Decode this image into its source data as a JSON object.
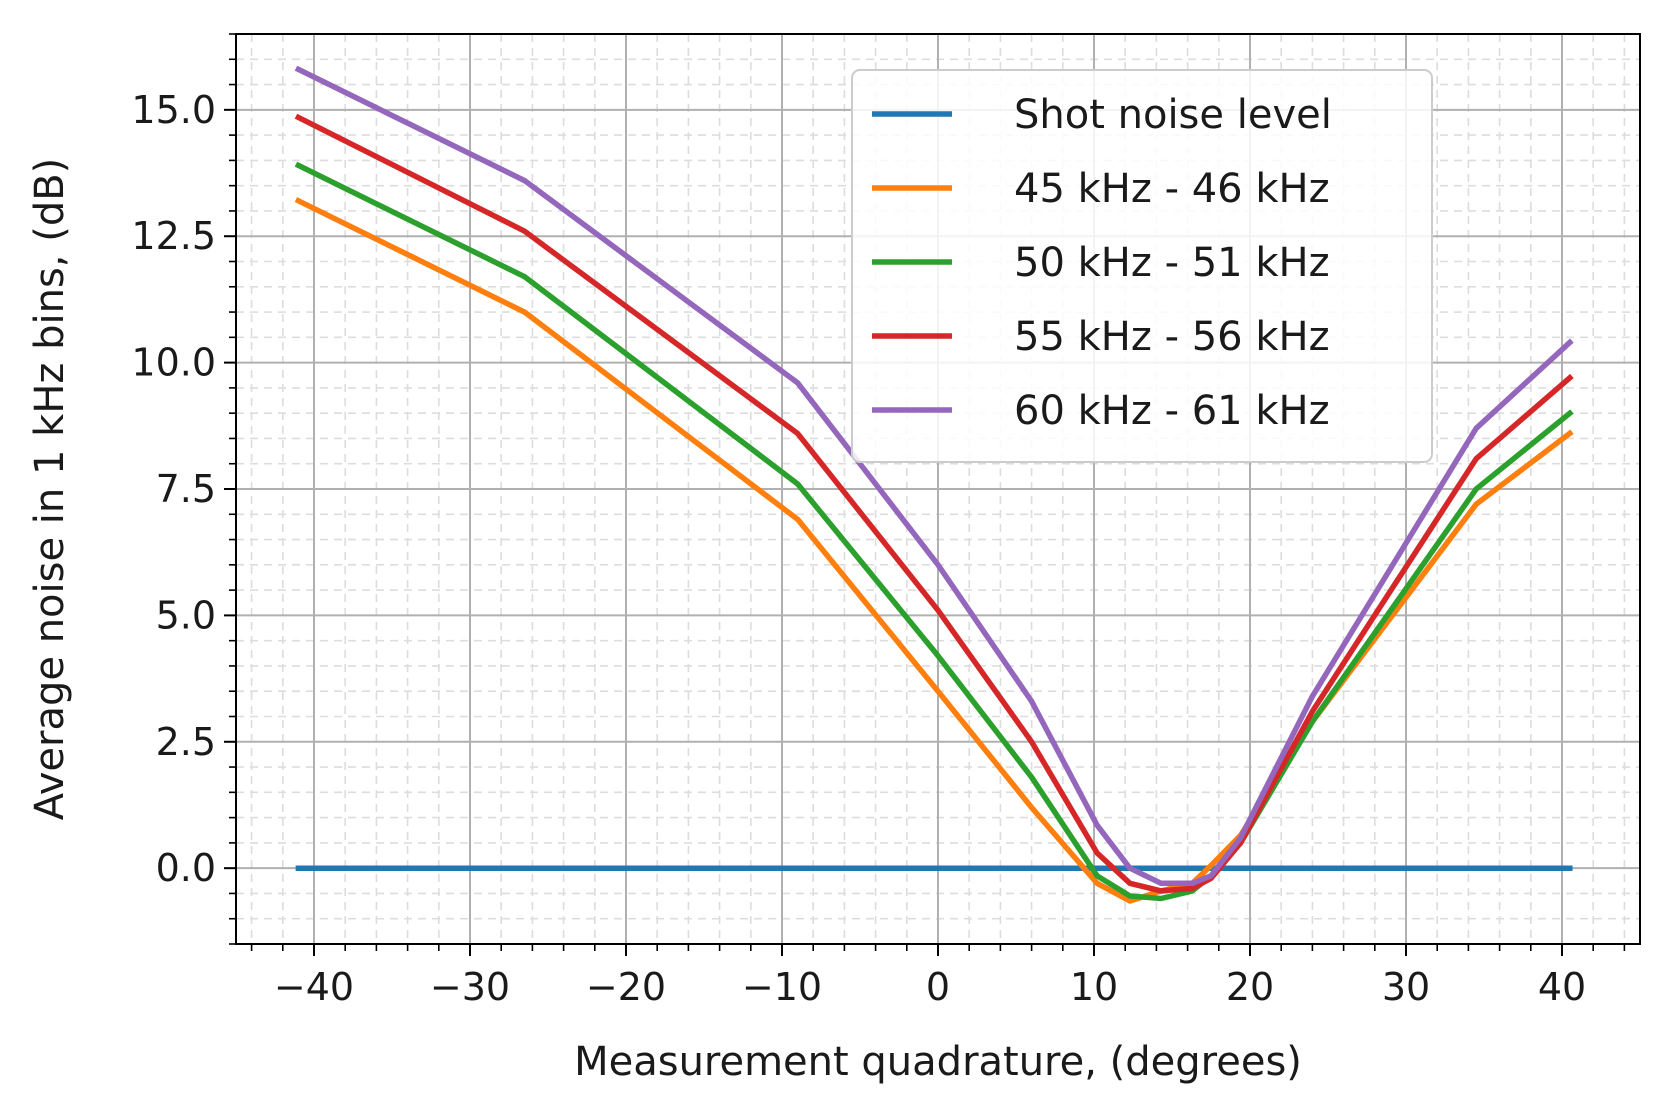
{
  "chart_data": {
    "type": "line",
    "xlabel": "Measurement quadrature, (degrees)",
    "ylabel": "Average noise in 1 kHz bins, (dB)",
    "xlim": [
      -45,
      45
    ],
    "ylim": [
      -1.5,
      16.5
    ],
    "x_ticks": [
      -40,
      -30,
      -20,
      -10,
      0,
      10,
      20,
      30,
      40
    ],
    "x_tick_labels": [
      "−40",
      "−30",
      "−20",
      "−10",
      "0",
      "10",
      "20",
      "30",
      "40"
    ],
    "y_ticks": [
      0,
      2.5,
      5,
      7.5,
      10,
      12.5,
      15
    ],
    "y_tick_labels": [
      "0.0",
      "2.5",
      "5.0",
      "7.5",
      "10.0",
      "12.5",
      "15.0"
    ],
    "x_minor_step": 2,
    "y_minor_step": 0.5,
    "grid": true,
    "legend_position": "top-right",
    "series": [
      {
        "name": "Shot noise level",
        "color": "#1f77b4",
        "x": [
          -41,
          40.5
        ],
        "y": [
          0,
          0
        ]
      },
      {
        "name": "45 kHz - 46 kHz",
        "color": "#ff7f0e",
        "x": [
          -41,
          -26.5,
          -9,
          0,
          6,
          10.2,
          12.3,
          14.3,
          16.3,
          17.5,
          19.4,
          24,
          34.5,
          40.5
        ],
        "y": [
          13.2,
          11.0,
          6.9,
          3.5,
          1.2,
          -0.3,
          -0.65,
          -0.45,
          -0.3,
          0.05,
          0.65,
          2.9,
          7.2,
          8.6
        ]
      },
      {
        "name": "50 kHz - 51 kHz",
        "color": "#2ca02c",
        "x": [
          -41,
          -26.5,
          -9,
          0,
          6,
          10.2,
          12.3,
          14.3,
          16.3,
          17.5,
          19.4,
          24,
          34.5,
          40.5
        ],
        "y": [
          13.9,
          11.7,
          7.6,
          4.2,
          1.8,
          -0.15,
          -0.55,
          -0.6,
          -0.45,
          -0.15,
          0.5,
          2.9,
          7.5,
          9.0
        ]
      },
      {
        "name": "55 kHz - 56 kHz",
        "color": "#d62728",
        "x": [
          -41,
          -26.5,
          -9,
          0,
          6,
          10.2,
          12.3,
          14.3,
          16.3,
          17.5,
          19.4,
          24,
          34.5,
          40.5
        ],
        "y": [
          14.85,
          12.6,
          8.6,
          5.1,
          2.5,
          0.3,
          -0.3,
          -0.45,
          -0.4,
          -0.2,
          0.5,
          3.1,
          8.1,
          9.7
        ]
      },
      {
        "name": "60 kHz - 61 kHz",
        "color": "#9467bd",
        "x": [
          -41,
          -26.5,
          -9,
          0,
          6,
          10.2,
          12.3,
          14.3,
          16.3,
          17.5,
          19.4,
          24,
          34.5,
          40.5
        ],
        "y": [
          15.8,
          13.6,
          9.6,
          6.0,
          3.3,
          0.85,
          0.0,
          -0.3,
          -0.3,
          -0.15,
          0.6,
          3.4,
          8.7,
          10.4
        ]
      }
    ]
  }
}
